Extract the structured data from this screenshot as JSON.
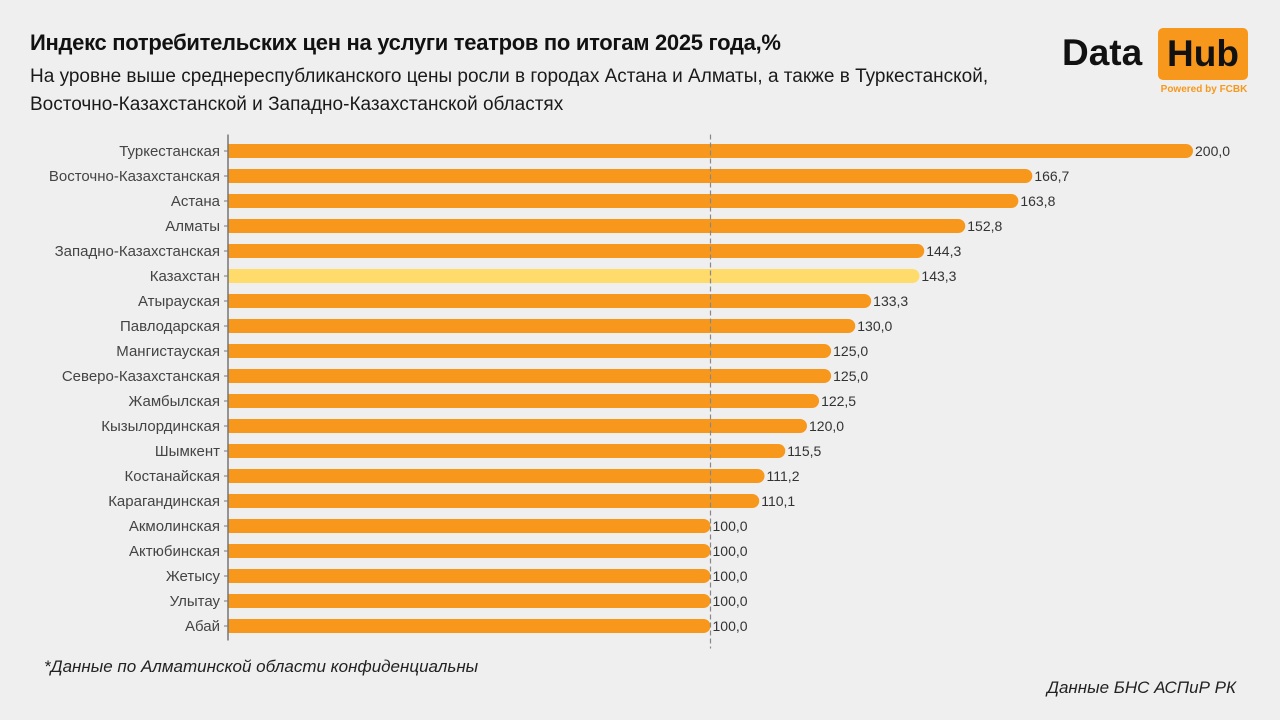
{
  "header": {
    "title": "Индекс потребительских цен на услуги театров по итогам 2025 года,%",
    "subtitle": "На уровне выше среднереспубликанского цены росли в городах Астана и Алматы, а также в Туркестанской, Восточно-Казахстанской и Западно-Казахстанской областях"
  },
  "logo": {
    "word1": "Data",
    "word2": "Hub",
    "tagline": "Powered by FCBK",
    "accent_color": "#f7981d"
  },
  "footer": {
    "note": "*Данные по Алматинской области конфиденциальны",
    "source": "Данные БНС АСПиР РК"
  },
  "chart_data": {
    "type": "bar",
    "orientation": "horizontal",
    "title": "Индекс потребительских цен на услуги театров по итогам 2025 года,%",
    "xlabel": "",
    "ylabel": "",
    "xlim": [
      0,
      200
    ],
    "reference_line": {
      "value": 100,
      "style": "dashed"
    },
    "grid": false,
    "bar_color": "#f7981d",
    "highlight_color": "#ffdb6b",
    "highlight_category": "Казахстан",
    "categories": [
      "Туркестанская",
      "Восточно-Казахстанская",
      "Астана",
      "Алматы",
      "Западно-Казахстанская",
      "Казахстан",
      "Атырауская",
      "Павлодарская",
      "Мангистауская",
      "Северо-Казахстанская",
      "Жамбылская",
      "Кызылординская",
      "Шымкент",
      "Костанайская",
      "Карагандинская",
      "Акмолинская",
      "Актюбинская",
      "Жетысу",
      "Улытау",
      "Абай"
    ],
    "values": [
      200.0,
      166.7,
      163.8,
      152.8,
      144.3,
      143.3,
      133.3,
      130.0,
      125.0,
      125.0,
      122.5,
      120.0,
      115.5,
      111.2,
      110.1,
      100.0,
      100.0,
      100.0,
      100.0,
      100.0
    ],
    "value_labels": [
      "200,0",
      "166,7",
      "163,8",
      "152,8",
      "144,3",
      "143,3",
      "133,3",
      "130,0",
      "125,0",
      "125,0",
      "122,5",
      "120,0",
      "115,5",
      "111,2",
      "110,1",
      "100,0",
      "100,0",
      "100,0",
      "100,0",
      "100,0"
    ]
  }
}
